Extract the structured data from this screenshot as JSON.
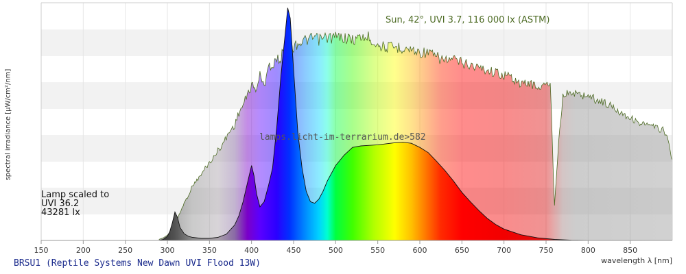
{
  "chart_data": {
    "type": "area",
    "caption": "BRSU1 (Reptile Systems New Dawn UVI Flood 13W)",
    "xlabel": "wavelength λ [nm]",
    "ylabel": "spectral irradiance [µW/cm²/nm]",
    "xlim": [
      150,
      900
    ],
    "x_ticks": [
      150,
      200,
      250,
      300,
      350,
      400,
      450,
      500,
      550,
      600,
      650,
      700,
      750,
      800,
      850
    ],
    "grid": true,
    "legend": "none",
    "annotations": {
      "sun_label": "Sun, 42°, UVI 3.7, 116 000 lx (ASTM)",
      "watermark": "lamps.licht-im-terrarium.de>582",
      "lamp_scaled": [
        "Lamp scaled to",
        "UVI 36.2",
        "43281 lx"
      ]
    },
    "series": [
      {
        "name": "Sun, 42°, UVI 3.7, 116 000 lx (ASTM)",
        "x": [
          290,
          295,
          300,
          305,
          310,
          315,
          320,
          325,
          330,
          335,
          340,
          345,
          350,
          355,
          360,
          365,
          370,
          375,
          380,
          385,
          390,
          395,
          400,
          405,
          410,
          415,
          420,
          425,
          430,
          435,
          440,
          445,
          450,
          455,
          460,
          465,
          470,
          475,
          480,
          490,
          500,
          510,
          520,
          530,
          540,
          550,
          560,
          570,
          580,
          590,
          600,
          610,
          620,
          630,
          640,
          650,
          660,
          670,
          680,
          690,
          700,
          710,
          720,
          730,
          740,
          750,
          755,
          760,
          765,
          770,
          780,
          790,
          800,
          810,
          820,
          830,
          840,
          850,
          860,
          870,
          880,
          890,
          895,
          900
        ],
        "values": [
          0.2,
          0.5,
          1.0,
          2.0,
          3.5,
          5.5,
          7.5,
          9.0,
          11.0,
          12.0,
          13.0,
          14.5,
          15.5,
          16.5,
          18.0,
          19.0,
          20.5,
          22.0,
          23.0,
          25.5,
          27.0,
          29.0,
          31.0,
          30.0,
          33.0,
          30.5,
          35.5,
          34.0,
          36.5,
          36.0,
          40.5,
          39.0,
          38.5,
          39.5,
          39.5,
          40.0,
          40.0,
          40.5,
          40.0,
          40.5,
          40.5,
          40.5,
          40.0,
          40.5,
          40.5,
          39.0,
          38.5,
          38.5,
          38.5,
          38.0,
          37.5,
          37.5,
          36.5,
          36.0,
          36.0,
          35.5,
          35.0,
          34.5,
          34.0,
          33.5,
          33.0,
          32.5,
          31.0,
          31.5,
          30.5,
          31.0,
          31.5,
          7.0,
          20.0,
          29.0,
          29.5,
          29.0,
          29.0,
          28.0,
          27.5,
          26.5,
          25.5,
          24.5,
          23.5,
          23.0,
          22.5,
          22.0,
          20.0,
          15.5
        ]
      },
      {
        "name": "BRSU1 (Reptile Systems New Dawn UVI Flood 13W)",
        "x": [
          285,
          290,
          295,
          300,
          303,
          306,
          309,
          312,
          315,
          320,
          325,
          330,
          340,
          350,
          360,
          370,
          380,
          385,
          390,
          395,
          400,
          403,
          406,
          410,
          415,
          420,
          425,
          430,
          435,
          440,
          443,
          446,
          450,
          455,
          460,
          465,
          470,
          475,
          480,
          485,
          490,
          500,
          510,
          520,
          530,
          540,
          550,
          560,
          570,
          580,
          590,
          600,
          610,
          620,
          630,
          640,
          650,
          660,
          670,
          680,
          690,
          700,
          720,
          740,
          760,
          780,
          800
        ],
        "values": [
          0,
          0,
          0.2,
          0.8,
          1.8,
          3.5,
          5.5,
          4.5,
          2.5,
          1.3,
          0.8,
          0.6,
          0.4,
          0.4,
          0.6,
          1.2,
          3.0,
          4.8,
          7.5,
          11.0,
          14.5,
          12.5,
          9.0,
          6.5,
          7.5,
          10.5,
          14.0,
          22.0,
          32.0,
          40.0,
          45.0,
          43.0,
          33.0,
          21.0,
          14.0,
          9.5,
          7.5,
          7.2,
          8.0,
          9.5,
          11.5,
          14.5,
          16.5,
          18.0,
          18.3,
          18.4,
          18.5,
          18.7,
          18.9,
          19.0,
          18.8,
          18.0,
          17.0,
          15.3,
          13.5,
          11.5,
          9.3,
          7.5,
          5.8,
          4.3,
          3.1,
          2.2,
          1.1,
          0.5,
          0.2,
          0.05,
          0
        ]
      }
    ]
  }
}
